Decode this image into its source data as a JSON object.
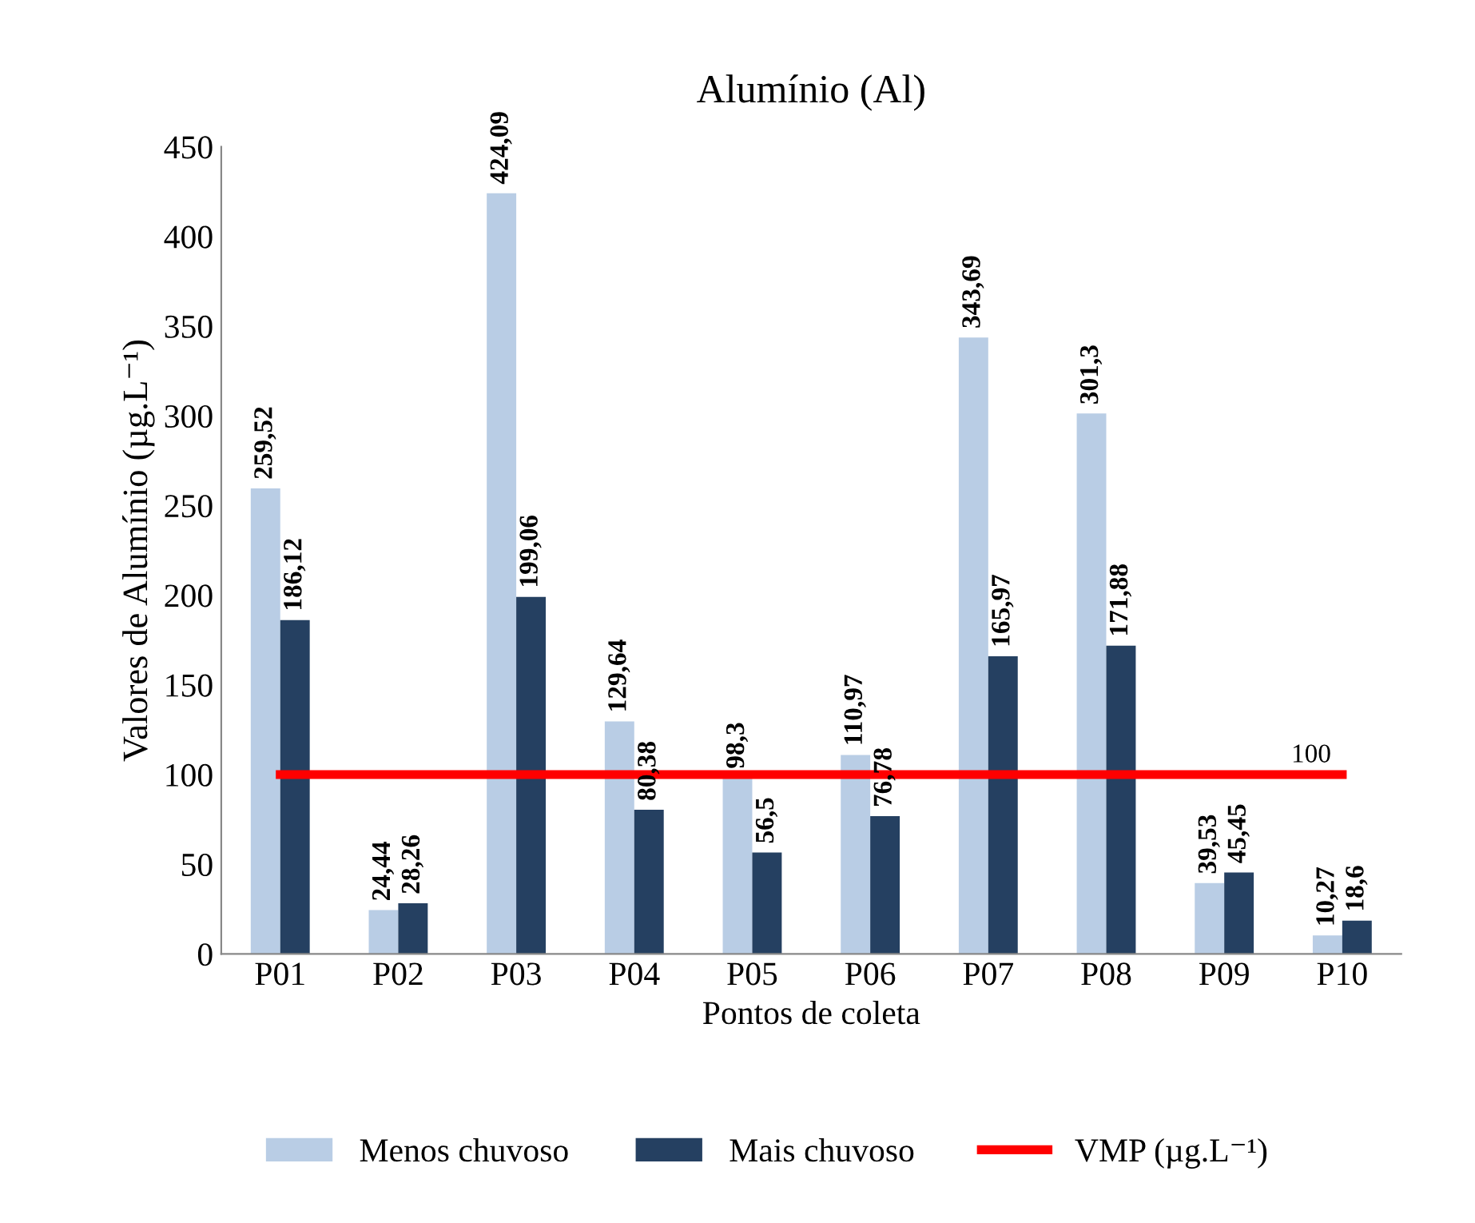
{
  "chart_data": {
    "type": "bar",
    "title": "Alumínio (Al)",
    "xlabel": "Pontos de coleta",
    "ylabel": "Valores de Alumínio (µg.L⁻¹)",
    "categories": [
      "P01",
      "P02",
      "P03",
      "P04",
      "P05",
      "P06",
      "P07",
      "P08",
      "P09",
      "P10"
    ],
    "series": [
      {
        "name": "Menos chuvoso",
        "color": "#b9cde5",
        "values": [
          259.52,
          24.44,
          424.09,
          129.64,
          98.3,
          110.97,
          343.69,
          301.3,
          39.53,
          10.27
        ],
        "value_labels": [
          "259,52",
          "24,44",
          "424,09",
          "129,64",
          "98,3",
          "110,97",
          "343,69",
          "301,3",
          "39,53",
          "10,27"
        ]
      },
      {
        "name": "Mais chuvoso",
        "color": "#254061",
        "values": [
          186.12,
          28.26,
          199.06,
          80.38,
          56.5,
          76.78,
          165.97,
          171.88,
          45.45,
          18.6
        ],
        "value_labels": [
          "186,12",
          "28,26",
          "199,06",
          "80,38",
          "56,5",
          "76,78",
          "165,97",
          "171,88",
          "45,45",
          "18,6"
        ]
      },
      {
        "name": "VMP (µg.L⁻¹)",
        "type": "line",
        "color": "#ff0000",
        "values": [
          100,
          100,
          100,
          100,
          100,
          100,
          100,
          100,
          100,
          100
        ],
        "value_labels": [
          null,
          null,
          null,
          null,
          null,
          null,
          null,
          null,
          null,
          "100"
        ]
      }
    ],
    "ylim": [
      0,
      450
    ],
    "yticks": [
      0,
      50,
      100,
      150,
      200,
      250,
      300,
      350,
      400,
      450
    ],
    "grid": false,
    "legend": "bottom"
  }
}
